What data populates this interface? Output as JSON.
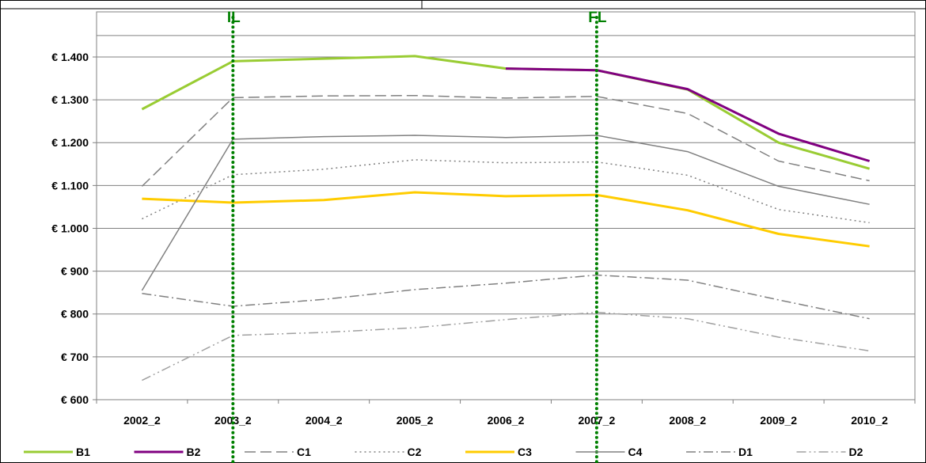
{
  "chart_data": {
    "type": "line",
    "title": "",
    "xlabel": "",
    "ylabel": "",
    "categories": [
      "2002_2",
      "2003_2",
      "2004_2",
      "2005_2",
      "2006_2",
      "2007_2",
      "2008_2",
      "2009_2",
      "2010_2"
    ],
    "y_ticks": [
      "€ 600",
      "€ 700",
      "€ 800",
      "€ 900",
      "€ 1.000",
      "€ 1.100",
      "€ 1.200",
      "€ 1.300",
      "€ 1.400"
    ],
    "ylim": [
      600,
      1450
    ],
    "grid": "horizontal",
    "legend_position": "bottom",
    "vertical_markers": [
      {
        "label": "IL",
        "category": "2003_2",
        "color": "#008000"
      },
      {
        "label": "FL",
        "category": "2007_2",
        "color": "#008000"
      }
    ],
    "series": [
      {
        "name": "B1",
        "color": "#99CC33",
        "dash": "solid",
        "width": 3,
        "values": [
          1278,
          1390,
          1396,
          1402,
          1373,
          1369,
          1324,
          1200,
          1139
        ]
      },
      {
        "name": "B2",
        "color": "#800080",
        "dash": "solid",
        "width": 3,
        "values": [
          null,
          null,
          null,
          null,
          1373,
          1369,
          1325,
          1221,
          1157
        ]
      },
      {
        "name": "C1",
        "color": "#808080",
        "dash": "long-dash",
        "width": 1.5,
        "values": [
          1098,
          1305,
          1309,
          1310,
          1304,
          1308,
          1268,
          1157,
          1111
        ]
      },
      {
        "name": "C2",
        "color": "#808080",
        "dash": "dot",
        "width": 1.5,
        "values": [
          1022,
          1125,
          1138,
          1160,
          1153,
          1155,
          1124,
          1044,
          1013
        ]
      },
      {
        "name": "C3",
        "color": "#FFCC00",
        "dash": "solid",
        "width": 3,
        "values": [
          1069,
          1060,
          1066,
          1084,
          1075,
          1078,
          1042,
          987,
          958
        ]
      },
      {
        "name": "C4",
        "color": "#808080",
        "dash": "solid",
        "width": 1.5,
        "values": [
          855,
          1208,
          1214,
          1217,
          1212,
          1217,
          1179,
          1098,
          1056
        ]
      },
      {
        "name": "D1",
        "color": "#808080",
        "dash": "dash-dot",
        "width": 1.5,
        "values": [
          848,
          818,
          834,
          857,
          872,
          891,
          879,
          833,
          789
        ]
      },
      {
        "name": "D2",
        "color": "#A0A0A0",
        "dash": "dash-dot-dot",
        "width": 1.5,
        "values": [
          645,
          750,
          757,
          768,
          787,
          804,
          789,
          746,
          714
        ]
      }
    ]
  }
}
